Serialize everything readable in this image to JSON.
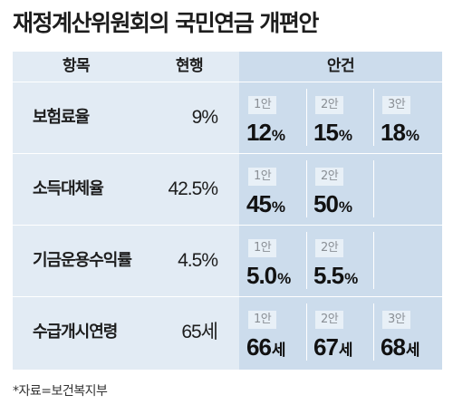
{
  "title": "재정계산위원회의 국민연금 개편안",
  "header": {
    "item": "항목",
    "current": "현행",
    "plan": "안건"
  },
  "rows": [
    {
      "label": "보험료율",
      "current": "9%",
      "plans": [
        {
          "tag": "1안",
          "value": "12",
          "unit": "%"
        },
        {
          "tag": "2안",
          "value": "15",
          "unit": "%"
        },
        {
          "tag": "3안",
          "value": "18",
          "unit": "%"
        }
      ]
    },
    {
      "label": "소득대체율",
      "current": "42.5%",
      "plans": [
        {
          "tag": "1안",
          "value": "45",
          "unit": "%"
        },
        {
          "tag": "2안",
          "value": "50",
          "unit": "%"
        }
      ]
    },
    {
      "label": "기금운용수익률",
      "current": "4.5%",
      "plans": [
        {
          "tag": "1안",
          "value": "5.0",
          "unit": "%"
        },
        {
          "tag": "2안",
          "value": "5.5",
          "unit": "%"
        }
      ]
    },
    {
      "label": "수급개시연령",
      "current": "65세",
      "plans": [
        {
          "tag": "1안",
          "value": "66",
          "unit": "세"
        },
        {
          "tag": "2안",
          "value": "67",
          "unit": "세"
        },
        {
          "tag": "3안",
          "value": "68",
          "unit": "세"
        }
      ]
    }
  ],
  "source": "*자료=보건복지부",
  "colors": {
    "table_left_bg": "#e2ebf4",
    "table_right_bg": "#ccdcec",
    "tag_bg": "#e8f0f7"
  }
}
